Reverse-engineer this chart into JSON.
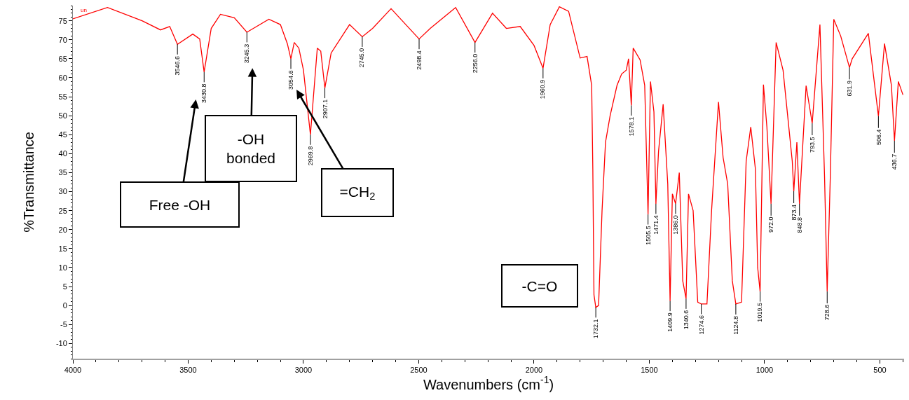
{
  "chart_data": {
    "type": "line",
    "xlabel": "Wavenumbers (cm$^{-1}$)",
    "ylabel": "%Transmittance",
    "xlim": [
      4000,
      395
    ],
    "ylim": [
      -14,
      79
    ],
    "xticks": [
      4000,
      3500,
      3000,
      2500,
      2000,
      1500,
      1000,
      500
    ],
    "yticks": [
      -10,
      -5,
      0,
      5,
      10,
      15,
      20,
      25,
      30,
      35,
      40,
      45,
      50,
      55,
      60,
      65,
      70,
      75
    ],
    "legend": false,
    "marker": "none",
    "line_style": "solid",
    "series": [
      {
        "name": "un",
        "color": "#ff0000",
        "x": [
          4000,
          3850,
          3700,
          3620,
          3580,
          3546.6,
          3480,
          3450,
          3430.8,
          3400,
          3360,
          3300,
          3245.3,
          3150,
          3100,
          3070,
          3054.6,
          3040,
          3020,
          3000,
          2969.8,
          2940,
          2925,
          2907.1,
          2880,
          2800,
          2745.0,
          2700,
          2620,
          2498.4,
          2450,
          2340,
          2256.0,
          2180,
          2120,
          2060,
          2000,
          1960.9,
          1930,
          1890,
          1850,
          1800,
          1770,
          1750,
          1745,
          1740,
          1732.1,
          1720,
          1705,
          1690,
          1670,
          1640,
          1620,
          1600,
          1590,
          1578.1,
          1570,
          1540,
          1520,
          1505.5,
          1495,
          1480,
          1471.4,
          1460,
          1440,
          1420,
          1409.9,
          1400,
          1386.0,
          1370,
          1355,
          1340.6,
          1330,
          1310,
          1290,
          1274.6,
          1250,
          1230,
          1200,
          1180,
          1160,
          1140,
          1124.8,
          1100,
          1080,
          1060,
          1040,
          1030,
          1019.5,
          1005,
          990,
          972.0,
          950,
          920,
          900,
          880,
          873.4,
          860,
          848.8,
          820,
          793.5,
          760,
          740,
          728.6,
          715,
          700,
          670,
          631.9,
          620,
          550,
          506.4,
          480,
          450,
          436.7,
          420,
          400
        ],
        "values": [
          75.5,
          78.5,
          75,
          72.6,
          73.5,
          68.8,
          71.5,
          70.2,
          61.5,
          73,
          76.7,
          75.8,
          72,
          75.4,
          74,
          69,
          65,
          69.3,
          67.8,
          62,
          45,
          67.8,
          67,
          57.3,
          66.5,
          74,
          70.8,
          73,
          78.2,
          70.2,
          73,
          78.5,
          69.3,
          77,
          73,
          73.5,
          68.5,
          62.5,
          74,
          78.7,
          77.5,
          65.2,
          65.6,
          58,
          36,
          2.8,
          -0.5,
          0,
          25,
          43,
          50,
          58,
          61,
          62,
          65,
          52.7,
          67.8,
          64.7,
          58,
          24,
          59,
          51,
          26.8,
          40.6,
          53,
          32,
          1.2,
          29.4,
          26.8,
          35,
          6.5,
          1.8,
          29.4,
          25,
          0.9,
          0.4,
          0.4,
          25,
          53.6,
          39,
          32,
          6.5,
          0.4,
          0.9,
          38,
          47,
          36,
          10,
          3.7,
          58.2,
          47,
          26.8,
          69.3,
          62,
          50,
          38,
          30.1,
          43,
          26.8,
          57.9,
          48,
          74,
          34,
          3.7,
          34,
          75.4,
          71,
          62.7,
          65,
          71.7,
          49.9,
          69,
          58,
          43.4,
          59,
          55.5
        ]
      }
    ],
    "annotations": [
      {
        "text": "3546.6",
        "x": 3546.6,
        "y": 68.8
      },
      {
        "text": "3430.8",
        "x": 3430.8,
        "y": 61.5
      },
      {
        "text": "3245.3",
        "x": 3245.3,
        "y": 72
      },
      {
        "text": "3054.6",
        "x": 3054.6,
        "y": 65
      },
      {
        "text": "2969.8",
        "x": 2969.8,
        "y": 45
      },
      {
        "text": "2907.1",
        "x": 2907.1,
        "y": 57.3
      },
      {
        "text": "2745.0",
        "x": 2745.0,
        "y": 70.8
      },
      {
        "text": "2498.4",
        "x": 2498.4,
        "y": 70.2
      },
      {
        "text": "2256.0",
        "x": 2256.0,
        "y": 69.3
      },
      {
        "text": "1960.9",
        "x": 1960.9,
        "y": 62.5
      },
      {
        "text": "1732.1",
        "x": 1732.1,
        "y": -0.5
      },
      {
        "text": "1578.1",
        "x": 1578.1,
        "y": 52.7
      },
      {
        "text": "1505.5",
        "x": 1505.5,
        "y": 24
      },
      {
        "text": "1471.4",
        "x": 1471.4,
        "y": 26.8
      },
      {
        "text": "1409.9",
        "x": 1409.9,
        "y": 1.2
      },
      {
        "text": "1386.0",
        "x": 1386.0,
        "y": 26.8
      },
      {
        "text": "1340.6",
        "x": 1340.6,
        "y": 1.8
      },
      {
        "text": "1274.6",
        "x": 1274.6,
        "y": 0.4
      },
      {
        "text": "1124.8",
        "x": 1124.8,
        "y": 0.4
      },
      {
        "text": "1019.5",
        "x": 1019.5,
        "y": 3.7
      },
      {
        "text": "972.0",
        "x": 972.0,
        "y": 26.8
      },
      {
        "text": "873.4",
        "x": 873.4,
        "y": 30.1
      },
      {
        "text": "848.8",
        "x": 848.8,
        "y": 26.8
      },
      {
        "text": "793.5",
        "x": 793.5,
        "y": 48
      },
      {
        "text": "728.6",
        "x": 728.6,
        "y": 3.7
      },
      {
        "text": "631.9",
        "x": 631.9,
        "y": 62.7
      },
      {
        "text": "506.4",
        "x": 506.4,
        "y": 49.9
      },
      {
        "text": "436.7",
        "x": 436.7,
        "y": 43.4
      },
      "Free -OH",
      "-OH bonded",
      "=CH$_{2}$",
      "-C=O"
    ]
  }
}
